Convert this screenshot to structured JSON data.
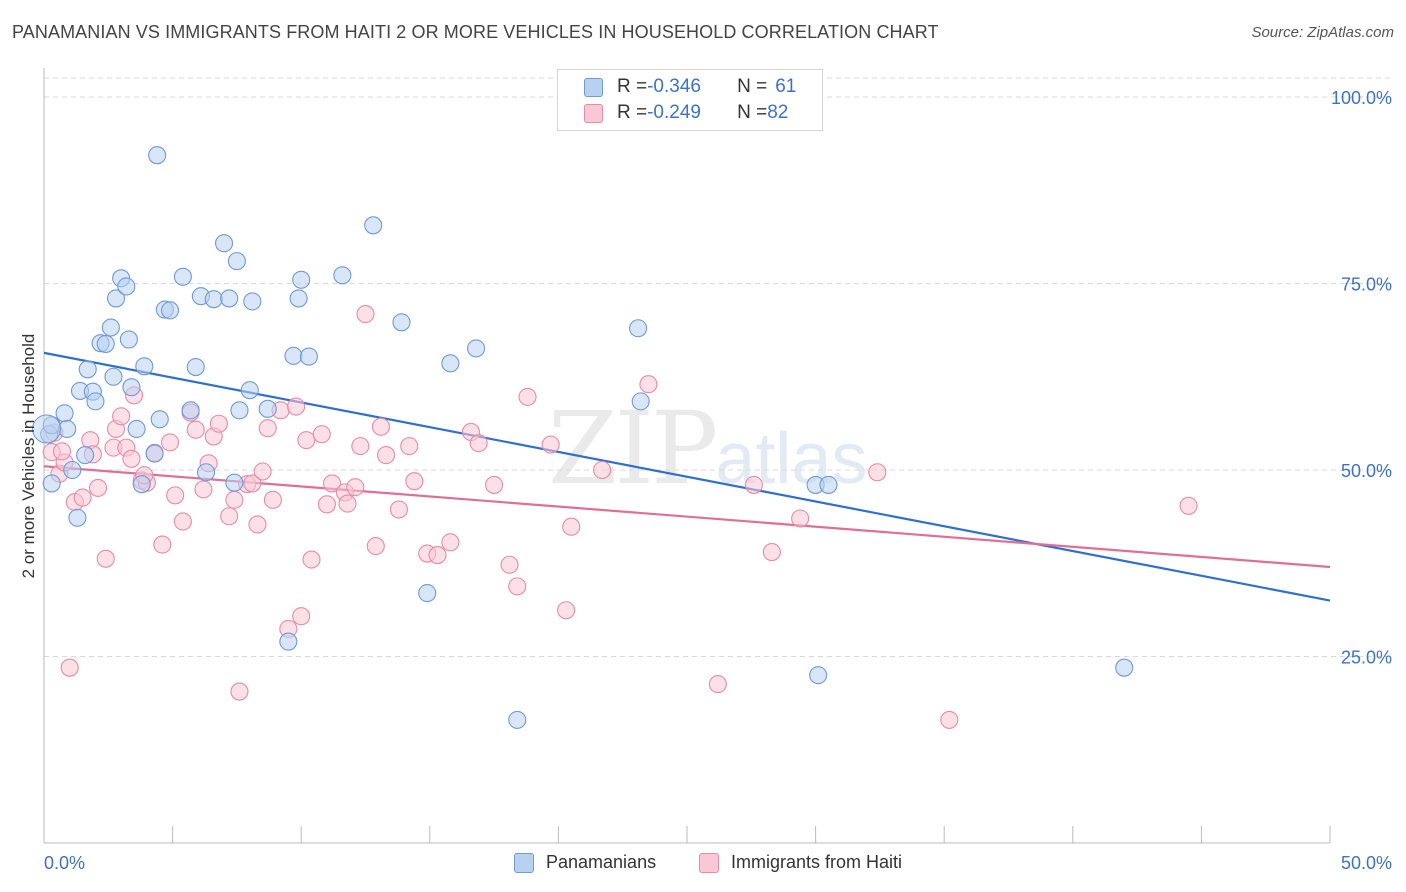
{
  "header": {
    "title": "PANAMANIAN VS IMMIGRANTS FROM HAITI 2 OR MORE VEHICLES IN HOUSEHOLD CORRELATION CHART",
    "source": "Source: ZipAtlas.com"
  },
  "legend_top": {
    "rows": [
      {
        "r_label": "R = ",
        "r_value": "-0.346",
        "n_label": "N = ",
        "n_value": "61"
      },
      {
        "r_label": "R = ",
        "r_value": "-0.249",
        "n_label": "N = ",
        "n_value": "82"
      }
    ]
  },
  "legend_bottom": {
    "items": [
      "Panamanians",
      "Immigrants from Haiti"
    ]
  },
  "watermark": {
    "main": "ZIP",
    "sub": "atlas"
  },
  "colors": {
    "blue_fill": "#b8d1f0",
    "blue_stroke": "#6e9ad8",
    "blue_line": "#2f6fce",
    "pink_fill": "#f9c7d6",
    "pink_stroke": "#e88aa8",
    "pink_line": "#e06f97",
    "tick_text": "#3b72c4",
    "grid": "#d9d9d9"
  },
  "chart_data": {
    "type": "scatter",
    "title": "PANAMANIAN VS IMMIGRANTS FROM HAITI 2 OR MORE VEHICLES IN HOUSEHOLD CORRELATION CHART",
    "xlabel": "",
    "ylabel": "2 or more Vehicles in Household",
    "xlim": [
      0,
      50
    ],
    "ylim": [
      0,
      100
    ],
    "x_tick_labels": [
      "0.0%",
      "50.0%"
    ],
    "y_ticks": [
      25,
      50,
      75,
      100
    ],
    "y_tick_labels": [
      "25.0%",
      "50.0%",
      "75.0%",
      "100.0%"
    ],
    "grid": true,
    "legend_position": "top-center",
    "series": [
      {
        "name": "Panamanians",
        "R": -0.346,
        "N": 61,
        "trend": {
          "x": [
            0,
            50
          ],
          "y": [
            65.7,
            32.5
          ]
        },
        "points": [
          [
            0.2,
            54.8
          ],
          [
            0.3,
            56.0
          ],
          [
            0.3,
            48.2
          ],
          [
            0.8,
            57.6
          ],
          [
            0.9,
            55.5
          ],
          [
            1.1,
            50.0
          ],
          [
            1.3,
            43.6
          ],
          [
            1.4,
            60.6
          ],
          [
            1.6,
            52.0
          ],
          [
            1.7,
            63.5
          ],
          [
            1.9,
            60.5
          ],
          [
            2.0,
            59.2
          ],
          [
            2.2,
            67.0
          ],
          [
            2.4,
            66.9
          ],
          [
            2.6,
            69.1
          ],
          [
            2.7,
            62.5
          ],
          [
            2.8,
            73.0
          ],
          [
            3.0,
            75.7
          ],
          [
            3.2,
            74.6
          ],
          [
            3.3,
            67.5
          ],
          [
            3.4,
            61.1
          ],
          [
            3.6,
            55.5
          ],
          [
            3.8,
            48.1
          ],
          [
            3.9,
            63.9
          ],
          [
            4.3,
            52.2
          ],
          [
            4.5,
            56.8
          ],
          [
            4.4,
            92.2
          ],
          [
            4.7,
            71.5
          ],
          [
            4.9,
            71.4
          ],
          [
            5.4,
            75.9
          ],
          [
            5.7,
            58.0
          ],
          [
            5.9,
            63.8
          ],
          [
            6.1,
            73.3
          ],
          [
            6.3,
            49.7
          ],
          [
            6.6,
            72.9
          ],
          [
            7.0,
            80.4
          ],
          [
            7.2,
            73.0
          ],
          [
            7.4,
            48.3
          ],
          [
            7.5,
            78.0
          ],
          [
            7.6,
            58.0
          ],
          [
            8.0,
            60.7
          ],
          [
            8.1,
            72.6
          ],
          [
            8.7,
            58.2
          ],
          [
            9.5,
            27.0
          ],
          [
            9.7,
            65.3
          ],
          [
            9.9,
            73.0
          ],
          [
            10.0,
            75.5
          ],
          [
            10.3,
            65.2
          ],
          [
            11.6,
            76.1
          ],
          [
            12.8,
            82.8
          ],
          [
            13.9,
            69.8
          ],
          [
            14.9,
            33.5
          ],
          [
            15.8,
            64.3
          ],
          [
            16.8,
            66.3
          ],
          [
            18.4,
            16.5
          ],
          [
            23.1,
            69.0
          ],
          [
            23.2,
            59.2
          ],
          [
            30.0,
            48.0
          ],
          [
            30.5,
            48.0
          ],
          [
            30.1,
            22.5
          ],
          [
            42.0,
            23.5
          ]
        ]
      },
      {
        "name": "Immigrants from Haiti",
        "R": -0.249,
        "N": 82,
        "trend": {
          "x": [
            0,
            50
          ],
          "y": [
            50.5,
            37.0
          ]
        },
        "points": [
          [
            0.3,
            52.4
          ],
          [
            0.4,
            55.0
          ],
          [
            0.6,
            49.5
          ],
          [
            0.8,
            51.0
          ],
          [
            1.0,
            23.5
          ],
          [
            1.2,
            45.7
          ],
          [
            1.5,
            46.3
          ],
          [
            1.8,
            54.0
          ],
          [
            1.9,
            52.1
          ],
          [
            2.1,
            47.6
          ],
          [
            2.4,
            38.1
          ],
          [
            2.7,
            53.0
          ],
          [
            2.8,
            55.5
          ],
          [
            3.0,
            57.2
          ],
          [
            3.2,
            53.0
          ],
          [
            3.4,
            51.5
          ],
          [
            3.5,
            60.0
          ],
          [
            3.8,
            48.6
          ],
          [
            4.0,
            48.3
          ],
          [
            4.3,
            52.3
          ],
          [
            4.6,
            40.0
          ],
          [
            4.9,
            53.7
          ],
          [
            5.1,
            46.6
          ],
          [
            5.4,
            43.1
          ],
          [
            5.7,
            57.7
          ],
          [
            5.9,
            55.4
          ],
          [
            6.2,
            47.4
          ],
          [
            6.4,
            50.9
          ],
          [
            6.6,
            54.5
          ],
          [
            6.8,
            56.2
          ],
          [
            7.2,
            43.8
          ],
          [
            7.4,
            46.0
          ],
          [
            7.6,
            20.3
          ],
          [
            7.9,
            48.1
          ],
          [
            8.1,
            48.2
          ],
          [
            8.3,
            42.7
          ],
          [
            8.5,
            49.8
          ],
          [
            8.7,
            55.6
          ],
          [
            8.9,
            46.0
          ],
          [
            9.2,
            58.0
          ],
          [
            9.5,
            28.7
          ],
          [
            9.8,
            58.5
          ],
          [
            10.0,
            30.4
          ],
          [
            10.2,
            54.0
          ],
          [
            10.4,
            38.0
          ],
          [
            10.8,
            54.8
          ],
          [
            11.0,
            45.4
          ],
          [
            11.2,
            48.2
          ],
          [
            11.7,
            47.0
          ],
          [
            11.8,
            45.5
          ],
          [
            12.1,
            47.7
          ],
          [
            12.3,
            53.2
          ],
          [
            12.5,
            70.9
          ],
          [
            12.9,
            39.8
          ],
          [
            13.1,
            55.8
          ],
          [
            13.3,
            52.0
          ],
          [
            13.8,
            44.7
          ],
          [
            14.2,
            53.2
          ],
          [
            14.4,
            48.5
          ],
          [
            14.9,
            38.8
          ],
          [
            15.3,
            38.6
          ],
          [
            15.8,
            40.3
          ],
          [
            16.6,
            55.1
          ],
          [
            16.9,
            53.6
          ],
          [
            17.5,
            48.0
          ],
          [
            18.1,
            37.3
          ],
          [
            18.4,
            34.4
          ],
          [
            18.8,
            59.8
          ],
          [
            19.7,
            53.4
          ],
          [
            20.3,
            31.2
          ],
          [
            20.5,
            42.4
          ],
          [
            21.7,
            50.0
          ],
          [
            23.5,
            61.5
          ],
          [
            26.2,
            21.3
          ],
          [
            27.6,
            48.0
          ],
          [
            28.3,
            39.0
          ],
          [
            29.4,
            43.5
          ],
          [
            32.4,
            49.7
          ],
          [
            35.2,
            16.5
          ],
          [
            44.5,
            45.2
          ],
          [
            0.7,
            52.5
          ],
          [
            3.9,
            49.3
          ]
        ]
      }
    ]
  }
}
